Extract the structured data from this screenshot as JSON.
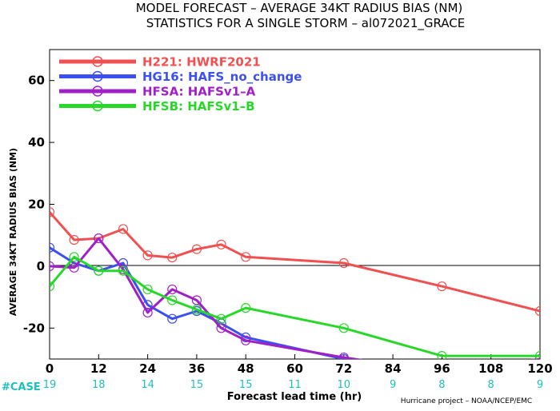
{
  "chart_data": {
    "type": "line",
    "title": "MODEL FORECAST – AVERAGE 34KT RADIUS BIAS (NM)",
    "subtitle": "STATISTICS FOR A SINGLE STORM – al072021_GRACE",
    "xlabel": "Forecast lead time (hr)",
    "ylabel": "AVERAGE 34KT RADIUS BIAS (NM)",
    "xlim": [
      0,
      120
    ],
    "ylim": [
      -30,
      70
    ],
    "x_ticks": [
      0,
      12,
      24,
      36,
      48,
      60,
      72,
      84,
      96,
      108,
      120
    ],
    "y_ticks": [
      -20,
      0,
      20,
      40,
      60
    ],
    "zero_line": true,
    "legend_position": "top-left",
    "series": [
      {
        "name": "H221: HWRF2021",
        "color": "#f05050",
        "x": [
          0,
          6,
          12,
          18,
          24,
          30,
          36,
          42,
          48,
          72,
          96,
          120
        ],
        "y": [
          17.5,
          8.5,
          9.0,
          12.0,
          3.5,
          2.8,
          5.5,
          7.0,
          3.0,
          1.0,
          -6.5,
          -14.5
        ]
      },
      {
        "name": "HG16: HAFS_no_change",
        "color": "#3c50f0",
        "x": [
          0,
          6,
          12,
          18,
          24,
          30,
          36,
          42,
          48,
          72,
          96,
          120
        ],
        "y": [
          6.0,
          1.0,
          -1.5,
          1.0,
          -12.5,
          -17.0,
          -14.5,
          -18.5,
          -23.0,
          -30.0,
          -35.0,
          -38.0
        ]
      },
      {
        "name": "HFSA: HAFSv1–A",
        "color": "#a020c8",
        "x": [
          0,
          6,
          12,
          18,
          24,
          30,
          36,
          42,
          48,
          72,
          96,
          120
        ],
        "y": [
          0.0,
          -0.5,
          9.0,
          -1.0,
          -15.0,
          -7.5,
          -11.0,
          -20.0,
          -24.0,
          -29.5,
          -34.0,
          -30.0
        ]
      },
      {
        "name": "HFSB: HAFSv1–B",
        "color": "#28d828",
        "x": [
          0,
          6,
          12,
          18,
          24,
          30,
          36,
          42,
          48,
          72,
          96,
          120
        ],
        "y": [
          -6.5,
          3.0,
          -1.5,
          -1.5,
          -7.5,
          -11.0,
          -14.0,
          -17.0,
          -13.5,
          -20.0,
          -29.0,
          -29.0
        ]
      }
    ],
    "case_label": "#CASE",
    "case_x": [
      0,
      12,
      24,
      36,
      48,
      60,
      72,
      84,
      96,
      108,
      120
    ],
    "case_counts": [
      "19",
      "18",
      "14",
      "15",
      "15",
      "11",
      "10",
      "9",
      "8",
      "8",
      "9"
    ],
    "credit": "Hurricane project – NOAA/NCEP/EMC"
  }
}
